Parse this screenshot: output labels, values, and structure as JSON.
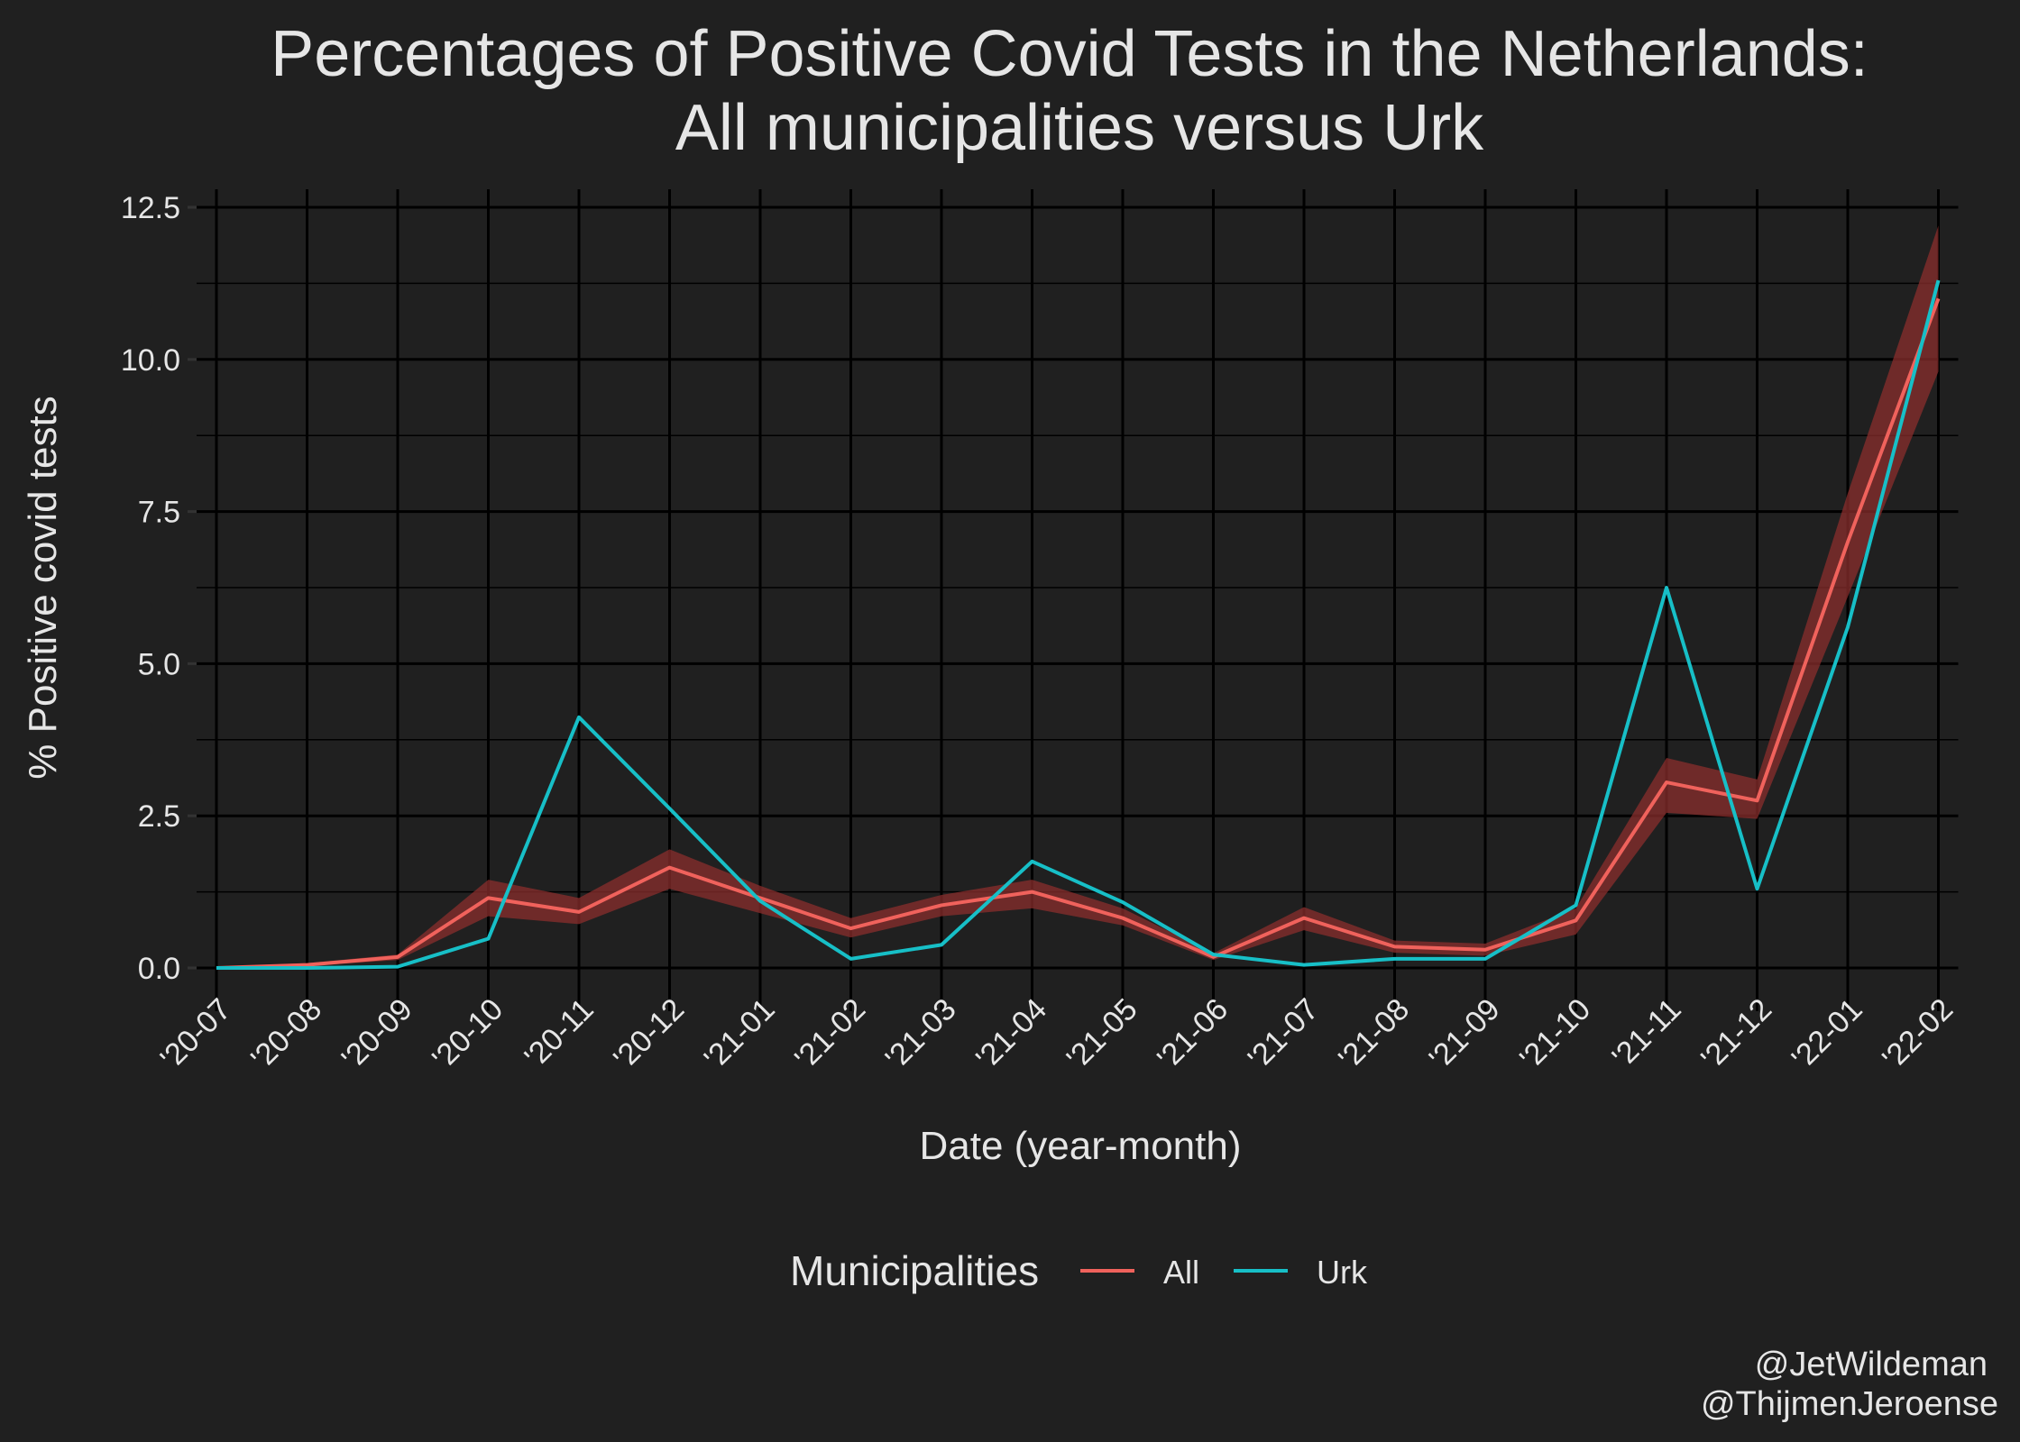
{
  "chart_data": {
    "type": "line",
    "title_lines": [
      "Percentages of Positive Covid Tests in the Netherlands:",
      "All municipalities versus Urk"
    ],
    "xlabel": "Date (year-month)",
    "ylabel": "% Positive covid tests",
    "categories": [
      "'20-07",
      "'20-08",
      "'20-09",
      "'20-10",
      "'20-11",
      "'20-12",
      "'21-01",
      "'21-02",
      "'21-03",
      "'21-04",
      "'21-05",
      "'21-06",
      "'21-07",
      "'21-08",
      "'21-09",
      "'21-10",
      "'21-11",
      "'21-12",
      "'22-01",
      "'22-02"
    ],
    "ylim": [
      0,
      12.5
    ],
    "yticks": [
      0.0,
      2.5,
      5.0,
      7.5,
      10.0,
      12.5
    ],
    "ytick_labels": [
      "0.0",
      "2.5",
      "5.0",
      "7.5",
      "10.0",
      "12.5"
    ],
    "grid": true,
    "legend": {
      "title": "Municipalities",
      "position": "bottom"
    },
    "series": [
      {
        "name": "All",
        "color": "#f0625c",
        "band_color": "#8a2e2c",
        "values": [
          0.0,
          0.05,
          0.18,
          1.15,
          0.92,
          1.65,
          1.15,
          0.65,
          1.03,
          1.25,
          0.82,
          0.18,
          0.82,
          0.35,
          0.3,
          0.78,
          3.05,
          2.75,
          7.0,
          11.0
        ],
        "lower": [
          0.0,
          0.03,
          0.13,
          0.85,
          0.72,
          1.3,
          0.9,
          0.5,
          0.85,
          0.98,
          0.7,
          0.13,
          0.62,
          0.25,
          0.2,
          0.55,
          2.55,
          2.45,
          6.1,
          9.8
        ],
        "upper": [
          0.02,
          0.08,
          0.22,
          1.45,
          1.15,
          1.95,
          1.35,
          0.82,
          1.2,
          1.45,
          0.98,
          0.24,
          1.0,
          0.45,
          0.4,
          0.98,
          3.45,
          3.1,
          7.8,
          12.2
        ]
      },
      {
        "name": "Urk",
        "color": "#17bfc7",
        "values": [
          0.0,
          0.0,
          0.02,
          0.48,
          4.12,
          2.62,
          1.1,
          0.15,
          0.38,
          1.75,
          1.08,
          0.22,
          0.05,
          0.15,
          0.15,
          1.03,
          6.25,
          1.3,
          5.6,
          11.3
        ]
      }
    ]
  },
  "credits": [
    "@JetWildeman",
    "@ThijmenJeroense"
  ]
}
